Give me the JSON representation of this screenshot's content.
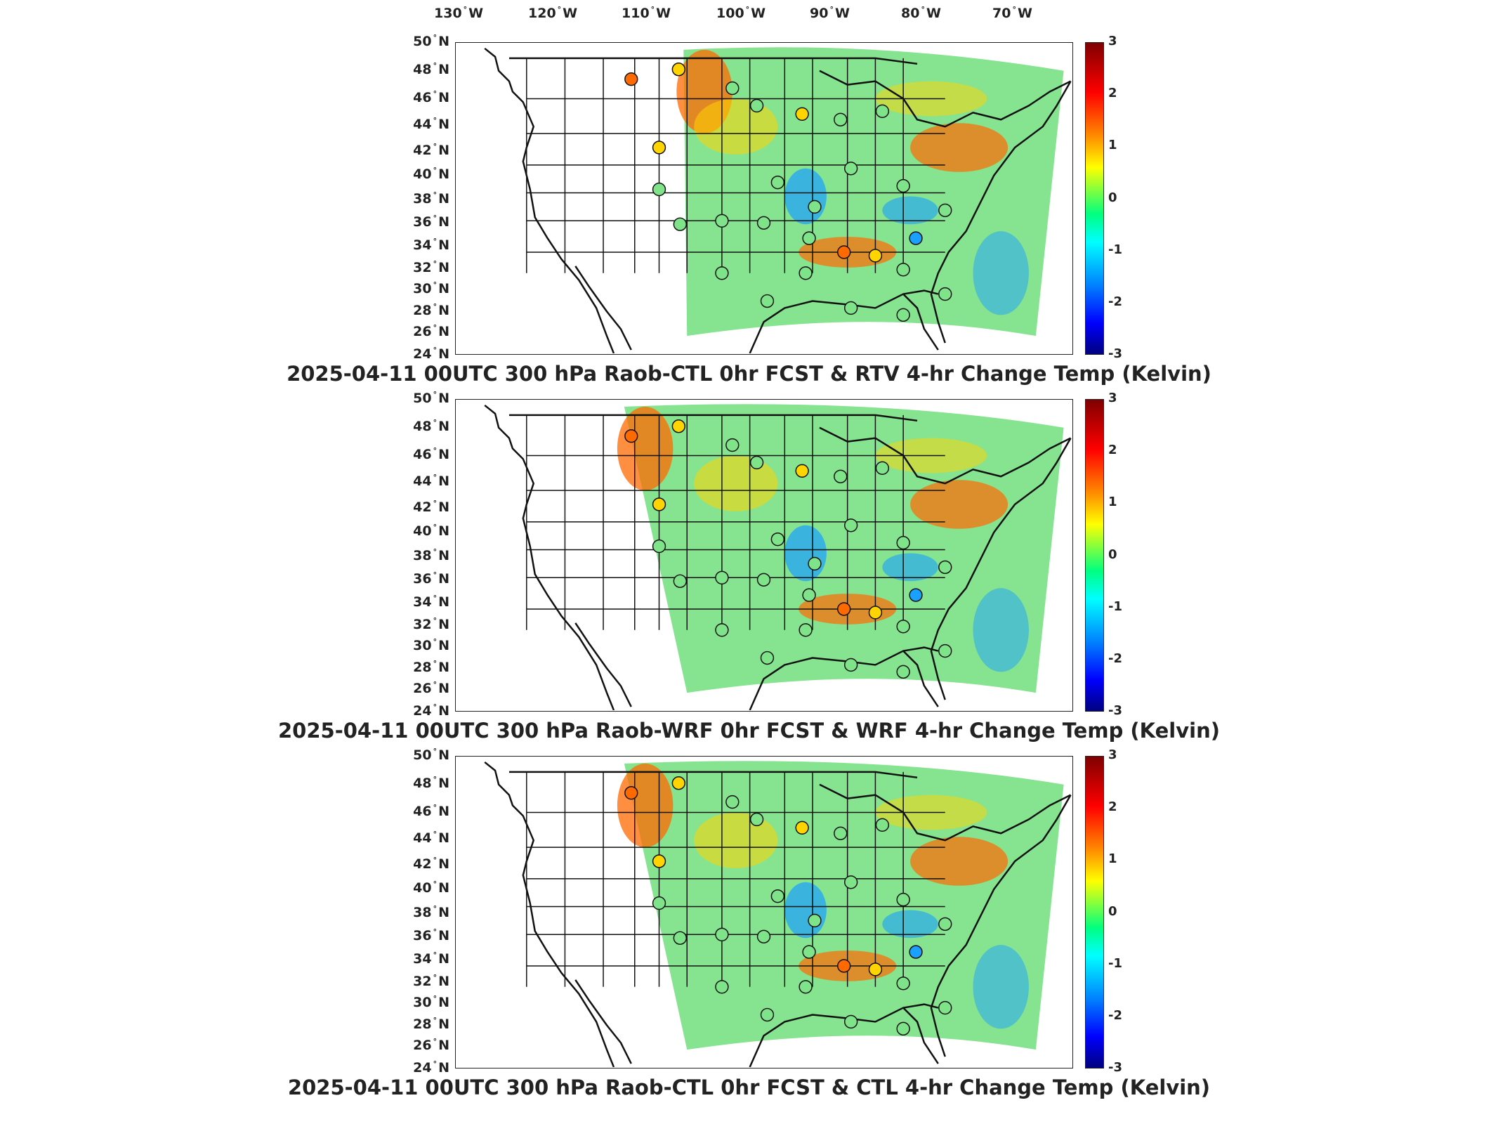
{
  "longitude_labels": [
    {
      "value": "130",
      "unit": "W"
    },
    {
      "value": "120",
      "unit": "W"
    },
    {
      "value": "110",
      "unit": "W"
    },
    {
      "value": "100",
      "unit": "W"
    },
    {
      "value": "90",
      "unit": "W"
    },
    {
      "value": "80",
      "unit": "W"
    },
    {
      "value": "70",
      "unit": "W"
    }
  ],
  "latitude_labels": [
    {
      "value": "50",
      "unit": "N"
    },
    {
      "value": "48",
      "unit": "N"
    },
    {
      "value": "46",
      "unit": "N"
    },
    {
      "value": "44",
      "unit": "N"
    },
    {
      "value": "42",
      "unit": "N"
    },
    {
      "value": "40",
      "unit": "N"
    },
    {
      "value": "38",
      "unit": "N"
    },
    {
      "value": "36",
      "unit": "N"
    },
    {
      "value": "34",
      "unit": "N"
    },
    {
      "value": "32",
      "unit": "N"
    },
    {
      "value": "30",
      "unit": "N"
    },
    {
      "value": "28",
      "unit": "N"
    },
    {
      "value": "26",
      "unit": "N"
    },
    {
      "value": "24",
      "unit": "N"
    }
  ],
  "colorbar": {
    "range": [
      -3,
      3
    ],
    "ticks": [
      "3",
      "2",
      "1",
      "0",
      "-1",
      "-2",
      "-3"
    ],
    "colors": [
      "#7f0000",
      "#ff0000",
      "#ff8c00",
      "#ffff00",
      "#00ff80",
      "#00ffff",
      "#0080ff",
      "#0000ff",
      "#00007f"
    ]
  },
  "panels": [
    {
      "title": "2025-04-11 00UTC 300 hPa Raob-CTL 0hr FCST & RTV 4-hr Change Temp (Kelvin)"
    },
    {
      "title": "2025-04-11 00UTC 300 hPa Raob-WRF 0hr FCST & WRF 4-hr Change Temp (Kelvin)"
    },
    {
      "title": "2025-04-11 00UTC 300 hPa Raob-CTL 0hr FCST & CTL 4-hr Change Temp (Kelvin)"
    }
  ],
  "colors": {
    "field_base": "#7fe38a",
    "warm": "#ff6a00",
    "cool": "#1aa0ff",
    "border": "#111111"
  }
}
